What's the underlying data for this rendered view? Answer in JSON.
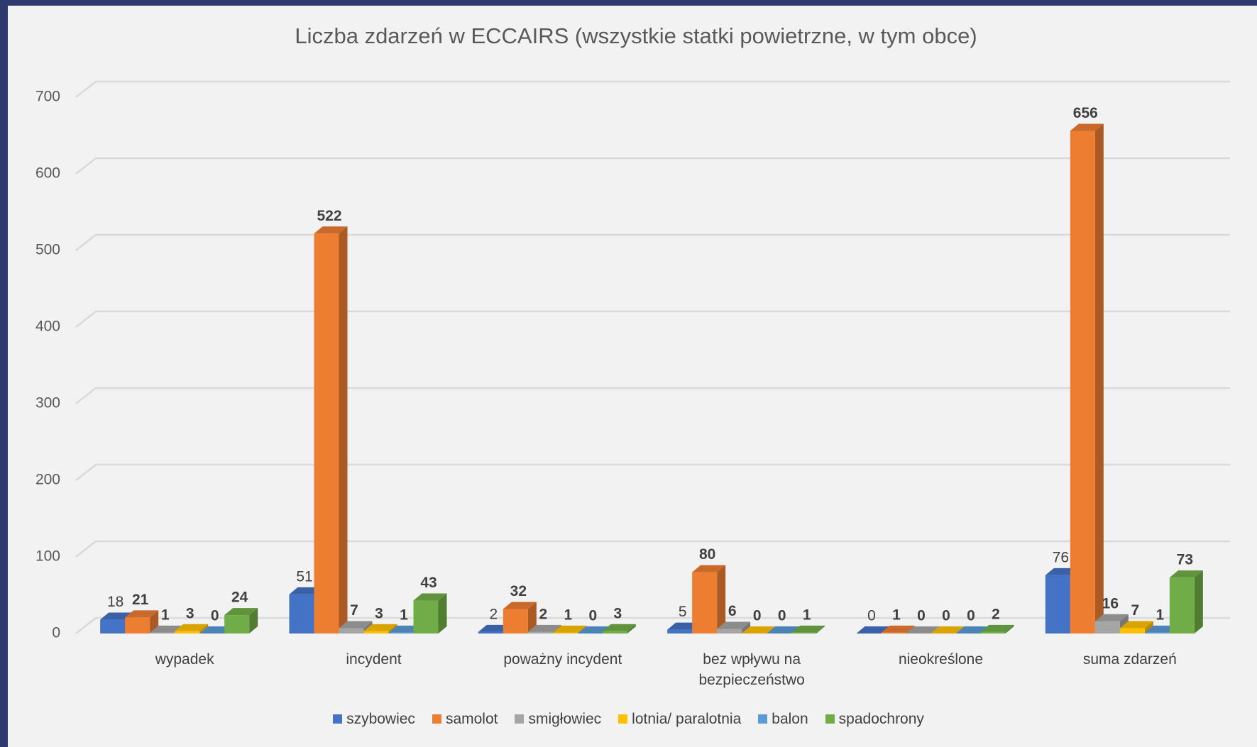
{
  "chart_data": {
    "type": "bar3d",
    "title": "Liczba zdarzeń w ECCAIRS  (wszystkie statki powietrzne, w tym obce)",
    "categories": [
      "wypadek",
      "incydent",
      "poważny incydent",
      "bez wpływu na bezpieczeństwo",
      "nieokreślone",
      "suma zdarzeń"
    ],
    "series": [
      {
        "name": "szybowiec",
        "color": "#4472c4",
        "values": [
          18,
          51,
          2,
          5,
          0,
          76
        ]
      },
      {
        "name": "samolot",
        "color": "#ed7d31",
        "values": [
          21,
          522,
          32,
          80,
          1,
          656
        ]
      },
      {
        "name": "smigłowiec",
        "color": "#a5a5a5",
        "values": [
          1,
          7,
          2,
          6,
          0,
          16
        ]
      },
      {
        "name": "lotnia/ paralotnia",
        "color": "#ffc000",
        "values": [
          3,
          3,
          1,
          0,
          0,
          7
        ]
      },
      {
        "name": "balon",
        "color": "#5b9bd5",
        "values": [
          0,
          1,
          0,
          0,
          0,
          1
        ]
      },
      {
        "name": "spadochrony",
        "color": "#70ad47",
        "values": [
          24,
          43,
          3,
          1,
          2,
          73
        ]
      }
    ],
    "ylim": [
      0,
      700
    ],
    "yticks": [
      0,
      100,
      200,
      300,
      400,
      500,
      600,
      700
    ],
    "grid": true,
    "legend": "bottom"
  }
}
